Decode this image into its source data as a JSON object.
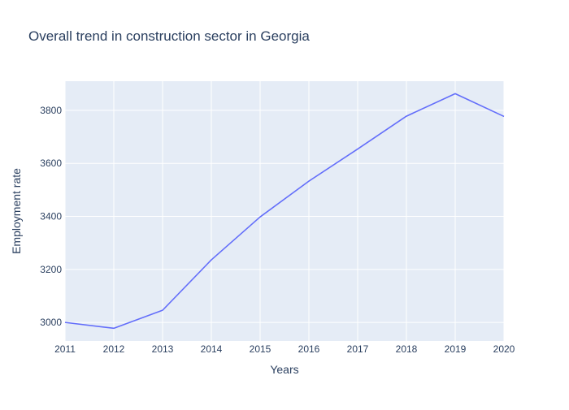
{
  "chart_data": {
    "type": "line",
    "title": "Overall trend in construction sector in Georgia",
    "xlabel": "Years",
    "ylabel": "Employment rate",
    "x": [
      2011,
      2012,
      2013,
      2014,
      2015,
      2016,
      2017,
      2018,
      2019,
      2020
    ],
    "series": [
      {
        "values": [
          3000,
          2978,
          3046,
          3236,
          3398,
          3533,
          3654,
          3778,
          3863,
          3777
        ]
      }
    ],
    "xlim": [
      2011,
      2020
    ],
    "ylim": [
      2930,
      3910
    ],
    "xticks": [
      2011,
      2012,
      2013,
      2014,
      2015,
      2016,
      2017,
      2018,
      2019,
      2020
    ],
    "yticks": [
      3000,
      3200,
      3400,
      3600,
      3800
    ],
    "grid": true,
    "legend": "none",
    "colors": {
      "line": "#636efa",
      "plot_background": "#e5ecf6",
      "grid": "#ffffff",
      "text": "#2a3f5f"
    }
  }
}
